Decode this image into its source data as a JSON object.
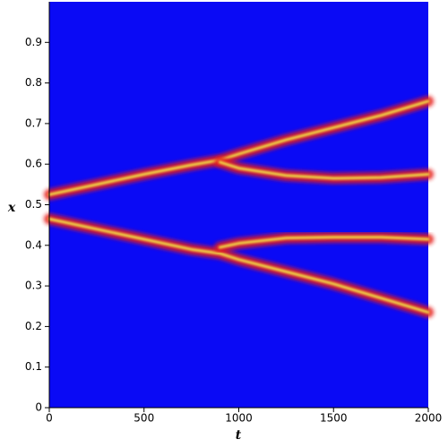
{
  "chart_data": {
    "type": "density-lines",
    "xlabel": "t",
    "ylabel": "x",
    "x": [
      0,
      250,
      500,
      750,
      900,
      1000,
      1250,
      1500,
      1750,
      2000
    ],
    "series": [
      {
        "color": "#e61e1e",
        "values": [
          0.525,
          0.55,
          0.575,
          0.598,
          0.61,
          0.625,
          0.66,
          0.69,
          0.72,
          0.755
        ]
      },
      {
        "color": "#e61e1e",
        "values": [
          0.465,
          0.44,
          0.415,
          0.39,
          0.38,
          0.365,
          0.335,
          0.305,
          0.27,
          0.235
        ]
      },
      {
        "color": "#e61e1e",
        "values": [
          null,
          null,
          null,
          null,
          0.605,
          0.59,
          0.572,
          0.565,
          0.567,
          0.575
        ]
      },
      {
        "color": "#e61e1e",
        "values": [
          null,
          null,
          null,
          null,
          0.395,
          0.405,
          0.418,
          0.42,
          0.42,
          0.415
        ]
      }
    ],
    "background": "#0a0af5",
    "core_color": "#f2e64a",
    "xlim": [
      0,
      2000
    ],
    "ylim": [
      0,
      1
    ],
    "xticks": [
      0,
      500,
      1000,
      1500,
      2000
    ],
    "yticks": [
      0,
      0.1,
      0.2,
      0.3,
      0.4,
      0.5,
      0.6,
      0.7,
      0.8,
      0.9
    ]
  }
}
